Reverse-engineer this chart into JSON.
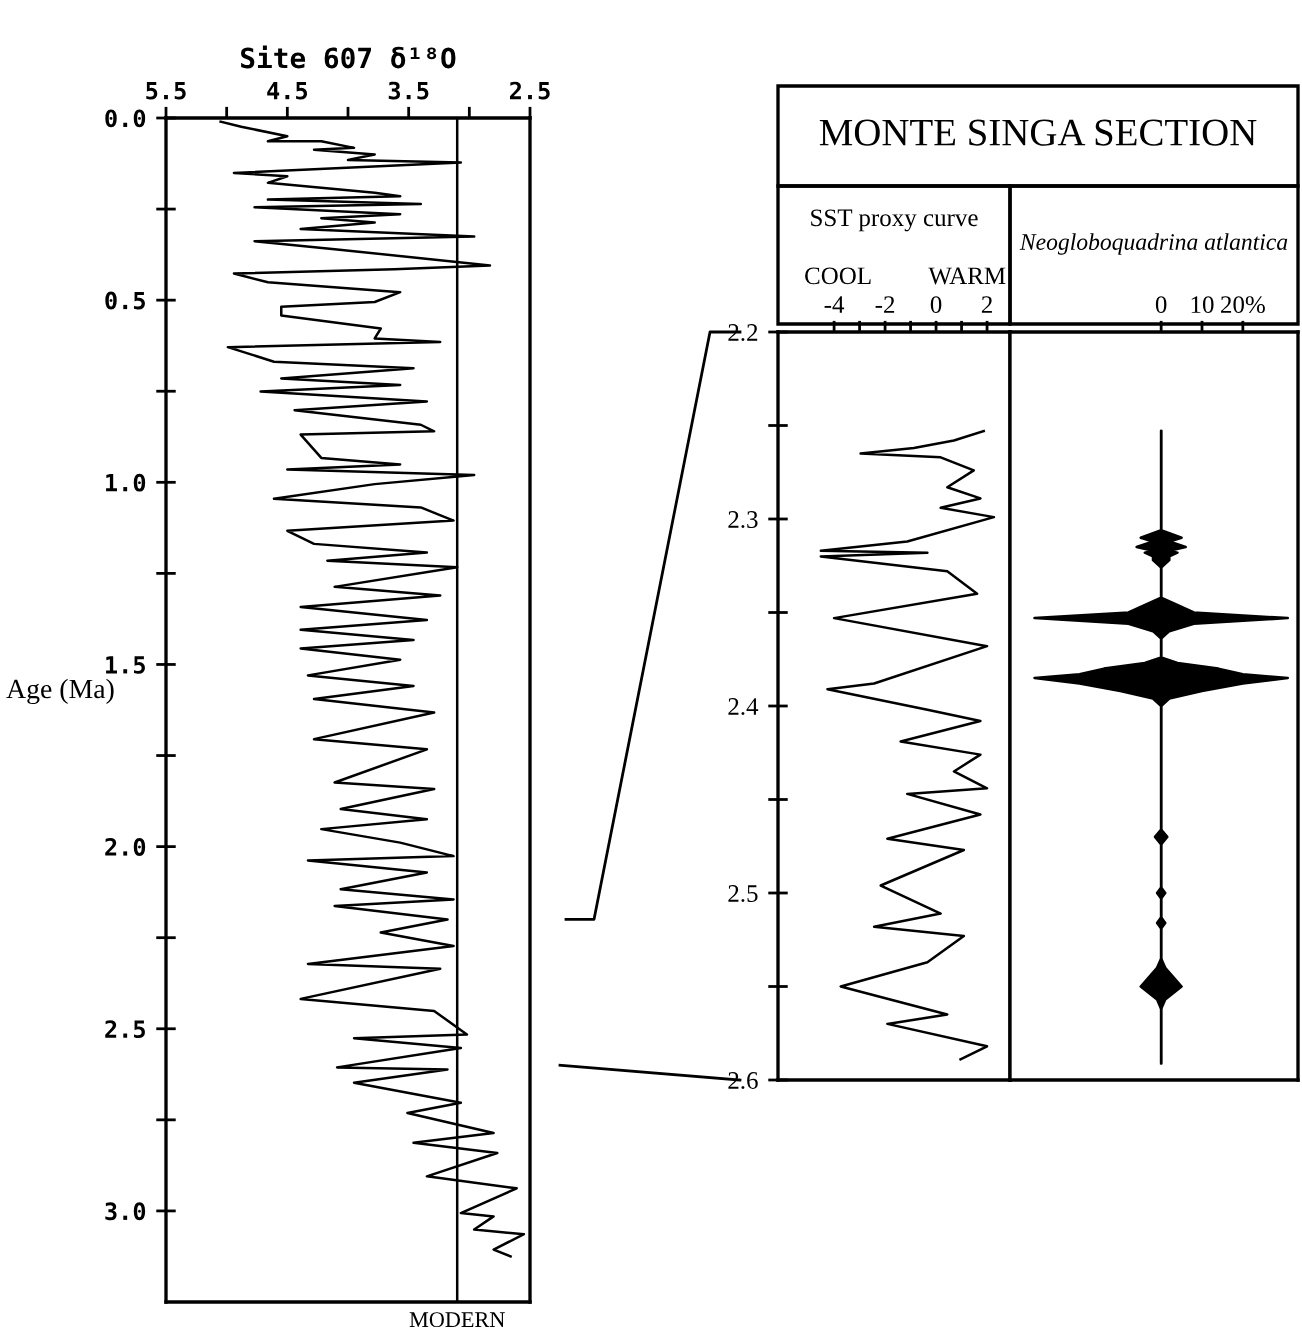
{
  "chart_data": [
    {
      "type": "line",
      "orientation": "horizontal",
      "title": "Site 607 δ¹⁸O",
      "ylabel": "Age (Ma)",
      "xlim": [
        5.5,
        2.5
      ],
      "ylim": [
        3.25,
        0
      ],
      "xticks": [
        5.5,
        {
          "value": 5.0,
          "label": null
        },
        4.5,
        {
          "value": 4.0,
          "label": null
        },
        3.5,
        {
          "value": 3.0,
          "label": null
        },
        2.5
      ],
      "yticks": [
        {
          "value": 0,
          "label": "0.0"
        },
        {
          "value": 0.25,
          "label": null
        },
        0.5,
        {
          "value": 0.75,
          "label": null
        },
        {
          "value": 1,
          "label": "1.0"
        },
        {
          "value": 1.25,
          "label": null
        },
        1.5,
        {
          "value": 1.75,
          "label": null
        },
        {
          "value": 2,
          "label": "2.0"
        },
        {
          "value": 2.25,
          "label": null
        },
        2.5,
        {
          "value": 2.75,
          "label": null
        },
        {
          "value": 3,
          "label": "3.0"
        }
      ],
      "ref_lines": [
        {
          "axis": "x",
          "value": 3.1,
          "label": "MODERN"
        }
      ],
      "series": [
        {
          "color": "#000000",
          "x": [
            0.01,
            0.024,
            0.05,
            0.064,
            0.064,
            0.082,
            0.087,
            0.1,
            0.115,
            0.122,
            0.151,
            0.16,
            0.178,
            0.205,
            0.215,
            0.224,
            0.236,
            0.245,
            0.264,
            0.275,
            0.287,
            0.305,
            0.325,
            0.338,
            0.36,
            0.405,
            0.415,
            0.427,
            0.451,
            0.478,
            0.505,
            0.518,
            0.542,
            0.578,
            0.605,
            0.615,
            0.629,
            0.669,
            0.687,
            0.715,
            0.733,
            0.751,
            0.778,
            0.802,
            0.842,
            0.86,
            0.869,
            0.933,
            0.951,
            0.965,
            0.98,
            1.005,
            1.045,
            1.069,
            1.105,
            1.133,
            1.169,
            1.193,
            1.215,
            1.233,
            1.287,
            1.311,
            1.342,
            1.378,
            1.405,
            1.433,
            1.456,
            1.487,
            1.53,
            1.559,
            1.595,
            1.632,
            1.705,
            1.733,
            1.824,
            1.842,
            1.897,
            1.925,
            1.952,
            1.989,
            2.026,
            2.038,
            2.071,
            2.117,
            2.145,
            2.163,
            2.2,
            2.236,
            2.273,
            2.322,
            2.335,
            2.418,
            2.451,
            2.516,
            2.526,
            2.553,
            2.606,
            2.612,
            2.648,
            2.703,
            2.731,
            2.786,
            2.813,
            2.841,
            2.905,
            2.938,
            3.006,
            3.015,
            3.051,
            3.064,
            3.106,
            3.125
          ],
          "values": [
            5.05,
            4.88,
            4.5,
            4.66,
            4.22,
            3.95,
            4.28,
            3.78,
            4.0,
            3.07,
            4.94,
            4.5,
            4.66,
            3.78,
            3.57,
            4.66,
            3.4,
            4.77,
            3.57,
            4.22,
            3.78,
            4.39,
            2.96,
            4.77,
            4.11,
            2.83,
            3.62,
            4.94,
            4.66,
            3.57,
            3.78,
            4.55,
            4.55,
            3.73,
            3.78,
            3.24,
            4.99,
            4.61,
            3.46,
            4.55,
            3.57,
            4.72,
            3.35,
            4.44,
            3.4,
            3.29,
            4.39,
            4.22,
            3.57,
            4.5,
            2.96,
            3.78,
            4.61,
            3.4,
            3.13,
            4.5,
            4.28,
            3.35,
            4.17,
            3.1,
            4.11,
            3.24,
            4.39,
            3.35,
            4.39,
            3.46,
            4.39,
            3.57,
            4.33,
            3.46,
            4.28,
            3.29,
            4.28,
            3.35,
            4.11,
            3.29,
            4.06,
            3.35,
            4.22,
            3.57,
            3.13,
            4.33,
            3.35,
            4.06,
            3.13,
            4.11,
            3.18,
            3.73,
            3.13,
            4.33,
            3.24,
            4.39,
            3.29,
            3.02,
            3.95,
            3.07,
            4.09,
            3.18,
            3.95,
            3.07,
            3.51,
            2.8,
            3.46,
            2.77,
            3.35,
            2.61,
            3.07,
            2.8,
            2.96,
            2.55,
            2.8,
            2.66
          ]
        }
      ]
    },
    {
      "type": "line",
      "orientation": "horizontal",
      "title": "MONTE SINGA SECTION",
      "xlabel": "SST proxy curve",
      "annotations": [
        "COOL",
        "WARM"
      ],
      "xlim": [
        -6.2,
        2.9
      ],
      "ylim": [
        2.6,
        2.2
      ],
      "xticks": [
        -4,
        {
          "value": -3,
          "label": null
        },
        -2,
        {
          "value": -1,
          "label": null
        },
        0,
        {
          "value": 1,
          "label": null
        },
        2
      ],
      "yticks": [
        2.2,
        {
          "value": 2.25,
          "label": null
        },
        2.3,
        {
          "value": 2.35,
          "label": null
        },
        2.4,
        {
          "value": 2.45,
          "label": null
        },
        2.5,
        {
          "value": 2.55,
          "label": null
        },
        2.6
      ],
      "series": [
        {
          "color": "#000000",
          "x": [
            2.253,
            2.258,
            2.262,
            2.265,
            2.267,
            2.274,
            2.283,
            2.289,
            2.294,
            2.299,
            2.312,
            2.317,
            2.318,
            2.32,
            2.328,
            2.34,
            2.353,
            2.368,
            2.388,
            2.391,
            2.402,
            2.408,
            2.419,
            2.426,
            2.435,
            2.444,
            2.447,
            2.458,
            2.471,
            2.477,
            2.496,
            2.511,
            2.518,
            2.523,
            2.537,
            2.55,
            2.565,
            2.57,
            2.582,
            2.589
          ],
          "values": [
            1.87,
            0.7,
            -0.87,
            -2.96,
            0.18,
            1.48,
            0.44,
            1.74,
            0.18,
            2.27,
            -1.13,
            -4.52,
            -0.34,
            -4.52,
            0.44,
            1.61,
            -4.0,
            2.0,
            -2.43,
            -4.26,
            -0.34,
            1.74,
            -1.39,
            1.74,
            0.7,
            2.0,
            -1.13,
            1.74,
            -1.91,
            1.09,
            -2.17,
            0.18,
            -2.43,
            1.09,
            -0.34,
            -3.74,
            0.44,
            -1.91,
            2.0,
            0.96
          ]
        }
      ]
    },
    {
      "type": "line",
      "orientation": "horizontal",
      "title": "Neogloboquadrina atlantica",
      "tick_labels": "x",
      "xlim": [
        -37,
        33.5
      ],
      "ylim": [
        2.6,
        2.2
      ],
      "xticks": [
        0,
        10,
        {
          "value": 20,
          "label": "20%"
        }
      ],
      "series": [
        {
          "color": "#000000",
          "x": [
            2.253,
            2.306,
            2.31,
            2.312,
            2.315,
            2.317,
            2.318,
            2.32,
            2.322,
            2.326,
            2.342,
            2.345,
            2.35,
            2.353,
            2.356,
            2.36,
            2.364,
            2.374,
            2.377,
            2.38,
            2.383,
            2.385,
            2.388,
            2.392,
            2.396,
            2.4,
            2.466,
            2.47,
            2.474,
            2.497,
            2.5,
            2.503,
            2.513,
            2.516,
            2.519,
            2.535,
            2.54,
            2.55,
            2.557,
            2.562,
            2.591
          ],
          "values": [
            0,
            0,
            0,
            0,
            0,
            0,
            0,
            0,
            0,
            0,
            0,
            0,
            0,
            0,
            0,
            0,
            0,
            0,
            0,
            0,
            0,
            0,
            0,
            0,
            0,
            0,
            0,
            0,
            0,
            0,
            0,
            0,
            0,
            0,
            0,
            0,
            0,
            0,
            0,
            0,
            0
          ],
          "lower": [
            0,
            0,
            -5,
            -2,
            -6,
            -2,
            -4,
            -2,
            -2,
            0,
            0,
            -3,
            -8,
            -31,
            -8,
            -2,
            0,
            0,
            -4,
            -14,
            -20,
            -31,
            -20,
            -10,
            -2,
            0,
            0,
            -1.5,
            0,
            0,
            -1,
            0,
            0,
            -1,
            0,
            0,
            -1,
            -5,
            -1,
            0,
            0
          ],
          "upper": [
            0,
            0,
            5,
            2,
            6,
            2,
            4,
            2,
            2,
            0,
            0,
            3,
            8,
            31,
            8,
            2,
            0,
            0,
            4,
            14,
            20,
            31,
            20,
            10,
            2,
            0,
            0,
            1.5,
            0,
            0,
            1,
            0,
            0,
            1,
            0,
            0,
            1,
            5,
            1,
            0,
            0
          ]
        }
      ]
    }
  ]
}
